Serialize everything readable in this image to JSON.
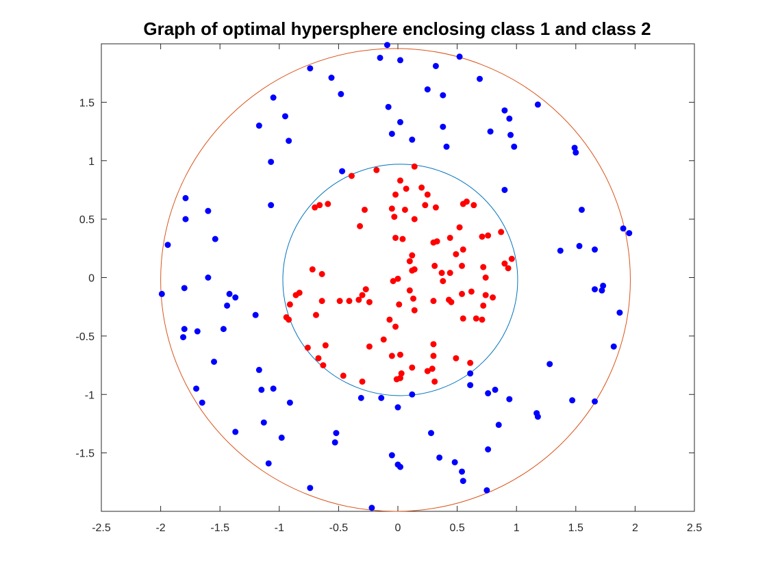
{
  "chart_data": {
    "type": "scatter",
    "title": "Graph of optimal hypersphere enclosing class 1 and class 2",
    "xlabel": "",
    "ylabel": "",
    "xlim": [
      -2.5,
      2.5
    ],
    "ylim": [
      -2,
      2
    ],
    "xticks": [
      "-2.5",
      "-2",
      "-1.5",
      "-1",
      "-0.5",
      "0",
      "0.5",
      "1",
      "1.5",
      "2",
      "2.5"
    ],
    "yticks": [
      "-1.5",
      "-1",
      "-0.5",
      "0",
      "0.5",
      "1",
      "1.5"
    ],
    "grid": false,
    "colors": {
      "class1": "#ff0000",
      "class2": "#0000ff",
      "inner_circle": "#0072bd",
      "outer_circle": "#d95319"
    },
    "circles": [
      {
        "cx": 0.02,
        "cy": -0.02,
        "r": 0.99,
        "color": "#0072bd"
      },
      {
        "cx": -0.02,
        "cy": -0.02,
        "r": 1.98,
        "color": "#d95319"
      }
    ],
    "series": [
      {
        "color": "#ff0000",
        "points": [
          [
            -0.18,
            0.92
          ],
          [
            -0.39,
            0.87
          ],
          [
            0.14,
            0.95
          ],
          [
            0.02,
            0.83
          ],
          [
            0.07,
            0.76
          ],
          [
            0.2,
            0.77
          ],
          [
            -0.02,
            0.71
          ],
          [
            0.25,
            0.71
          ],
          [
            -0.7,
            0.6
          ],
          [
            -0.66,
            0.62
          ],
          [
            -0.59,
            0.63
          ],
          [
            -0.28,
            0.58
          ],
          [
            -0.05,
            0.59
          ],
          [
            0.06,
            0.58
          ],
          [
            0.23,
            0.62
          ],
          [
            0.32,
            0.6
          ],
          [
            0.55,
            0.63
          ],
          [
            0.58,
            0.65
          ],
          [
            0.64,
            0.62
          ],
          [
            -0.03,
            0.52
          ],
          [
            0.14,
            0.5
          ],
          [
            -0.32,
            0.44
          ],
          [
            0.52,
            0.43
          ],
          [
            0.87,
            0.39
          ],
          [
            -0.02,
            0.34
          ],
          [
            0.04,
            0.33
          ],
          [
            0.3,
            0.3
          ],
          [
            0.33,
            0.31
          ],
          [
            0.44,
            0.34
          ],
          [
            0.71,
            0.35
          ],
          [
            0.76,
            0.36
          ],
          [
            0.12,
            0.19
          ],
          [
            0.55,
            0.24
          ],
          [
            0.49,
            0.2
          ],
          [
            0.1,
            0.14
          ],
          [
            0.9,
            0.12
          ],
          [
            0.96,
            0.16
          ],
          [
            0.93,
            0.08
          ],
          [
            0.12,
            0.06
          ],
          [
            0.14,
            0.07
          ],
          [
            0.31,
            0.1
          ],
          [
            0.37,
            0.04
          ],
          [
            0.44,
            0.04
          ],
          [
            0.54,
            0.1
          ],
          [
            0.72,
            0.09
          ],
          [
            -0.72,
            0.07
          ],
          [
            -0.64,
            0.03
          ],
          [
            0.38,
            -0.03
          ],
          [
            0.74,
            0.0
          ],
          [
            0.0,
            -0.01
          ],
          [
            -0.04,
            -0.03
          ],
          [
            -0.27,
            -0.1
          ],
          [
            -0.83,
            -0.13
          ],
          [
            -0.86,
            -0.15
          ],
          [
            -0.64,
            -0.2
          ],
          [
            -0.49,
            -0.2
          ],
          [
            -0.41,
            -0.2
          ],
          [
            -0.33,
            -0.19
          ],
          [
            -0.3,
            -0.15
          ],
          [
            -0.24,
            -0.21
          ],
          [
            0.1,
            -0.11
          ],
          [
            0.13,
            -0.18
          ],
          [
            0.3,
            -0.2
          ],
          [
            0.43,
            -0.19
          ],
          [
            0.45,
            -0.21
          ],
          [
            0.54,
            -0.14
          ],
          [
            0.62,
            -0.12
          ],
          [
            0.74,
            -0.15
          ],
          [
            0.8,
            -0.17
          ],
          [
            -0.91,
            -0.23
          ],
          [
            0.01,
            -0.23
          ],
          [
            -0.94,
            -0.34
          ],
          [
            -0.92,
            -0.36
          ],
          [
            -0.69,
            -0.32
          ],
          [
            -0.07,
            -0.36
          ],
          [
            0.14,
            -0.28
          ],
          [
            0.55,
            -0.35
          ],
          [
            0.66,
            -0.35
          ],
          [
            0.71,
            -0.36
          ],
          [
            0.72,
            -0.24
          ],
          [
            -0.02,
            -0.42
          ],
          [
            -0.76,
            -0.6
          ],
          [
            -0.61,
            -0.58
          ],
          [
            -0.12,
            -0.53
          ],
          [
            -0.24,
            -0.59
          ],
          [
            0.3,
            -0.57
          ],
          [
            -0.67,
            -0.69
          ],
          [
            -0.63,
            -0.75
          ],
          [
            -0.05,
            -0.67
          ],
          [
            0.02,
            -0.66
          ],
          [
            0.3,
            -0.67
          ],
          [
            0.49,
            -0.69
          ],
          [
            0.61,
            -0.73
          ],
          [
            -0.46,
            -0.84
          ],
          [
            -0.3,
            -0.89
          ],
          [
            0.12,
            -0.77
          ],
          [
            0.25,
            -0.8
          ],
          [
            0.29,
            -0.78
          ],
          [
            0.03,
            -0.82
          ],
          [
            0.02,
            -0.86
          ],
          [
            -0.01,
            -0.87
          ],
          [
            0.31,
            -0.89
          ]
        ]
      },
      {
        "color": "#0000ff",
        "points": [
          [
            -0.09,
            1.99
          ],
          [
            -0.15,
            1.88
          ],
          [
            0.02,
            1.86
          ],
          [
            0.32,
            1.81
          ],
          [
            0.52,
            1.89
          ],
          [
            -0.74,
            1.79
          ],
          [
            -0.56,
            1.71
          ],
          [
            0.69,
            1.7
          ],
          [
            -0.48,
            1.57
          ],
          [
            0.25,
            1.61
          ],
          [
            0.38,
            1.56
          ],
          [
            -1.05,
            1.54
          ],
          [
            -0.08,
            1.46
          ],
          [
            0.9,
            1.43
          ],
          [
            1.18,
            1.48
          ],
          [
            -0.95,
            1.38
          ],
          [
            0.94,
            1.36
          ],
          [
            0.02,
            1.33
          ],
          [
            -1.17,
            1.3
          ],
          [
            0.38,
            1.29
          ],
          [
            0.78,
            1.25
          ],
          [
            -0.05,
            1.23
          ],
          [
            0.95,
            1.22
          ],
          [
            0.12,
            1.18
          ],
          [
            -0.92,
            1.17
          ],
          [
            0.41,
            1.12
          ],
          [
            0.98,
            1.12
          ],
          [
            1.49,
            1.11
          ],
          [
            1.5,
            1.07
          ],
          [
            -1.07,
            0.99
          ],
          [
            -0.47,
            0.91
          ],
          [
            0.9,
            0.75
          ],
          [
            -1.79,
            0.68
          ],
          [
            -1.6,
            0.57
          ],
          [
            -1.07,
            0.62
          ],
          [
            1.55,
            0.58
          ],
          [
            -1.79,
            0.5
          ],
          [
            -1.54,
            0.33
          ],
          [
            -1.94,
            0.28
          ],
          [
            1.37,
            0.23
          ],
          [
            1.53,
            0.27
          ],
          [
            1.66,
            0.24
          ],
          [
            1.9,
            0.42
          ],
          [
            1.95,
            0.38
          ],
          [
            -1.99,
            -0.14
          ],
          [
            -1.8,
            -0.09
          ],
          [
            -1.6,
            0.0
          ],
          [
            -1.42,
            -0.14
          ],
          [
            -1.37,
            -0.17
          ],
          [
            -1.44,
            -0.24
          ],
          [
            1.66,
            -0.1
          ],
          [
            1.72,
            -0.11
          ],
          [
            1.73,
            -0.07
          ],
          [
            -1.2,
            -0.32
          ],
          [
            1.87,
            -0.3
          ],
          [
            -1.8,
            -0.44
          ],
          [
            -1.69,
            -0.46
          ],
          [
            -1.47,
            -0.44
          ],
          [
            -1.81,
            -0.51
          ],
          [
            1.82,
            -0.59
          ],
          [
            -1.55,
            -0.72
          ],
          [
            1.28,
            -0.74
          ],
          [
            -1.17,
            -0.79
          ],
          [
            0.61,
            -0.82
          ],
          [
            -1.7,
            -0.95
          ],
          [
            -1.15,
            -0.96
          ],
          [
            -1.05,
            -0.95
          ],
          [
            0.61,
            -0.92
          ],
          [
            0.76,
            -0.99
          ],
          [
            0.82,
            -0.96
          ],
          [
            0.12,
            -1.0
          ],
          [
            -0.31,
            -1.03
          ],
          [
            -0.14,
            -1.03
          ],
          [
            0.94,
            -1.04
          ],
          [
            1.47,
            -1.05
          ],
          [
            -1.65,
            -1.07
          ],
          [
            -0.91,
            -1.07
          ],
          [
            1.66,
            -1.06
          ],
          [
            0.0,
            -1.11
          ],
          [
            1.17,
            -1.16
          ],
          [
            1.18,
            -1.19
          ],
          [
            -1.13,
            -1.24
          ],
          [
            0.85,
            -1.26
          ],
          [
            -1.37,
            -1.32
          ],
          [
            -0.52,
            -1.33
          ],
          [
            0.28,
            -1.33
          ],
          [
            -0.98,
            -1.37
          ],
          [
            -0.53,
            -1.41
          ],
          [
            0.76,
            -1.47
          ],
          [
            -0.05,
            -1.52
          ],
          [
            0.35,
            -1.54
          ],
          [
            -1.09,
            -1.59
          ],
          [
            0.48,
            -1.58
          ],
          [
            0.0,
            -1.6
          ],
          [
            0.02,
            -1.62
          ],
          [
            0.54,
            -1.66
          ],
          [
            0.55,
            -1.74
          ],
          [
            -0.74,
            -1.8
          ],
          [
            0.75,
            -1.82
          ],
          [
            -0.22,
            -1.97
          ]
        ]
      }
    ]
  }
}
